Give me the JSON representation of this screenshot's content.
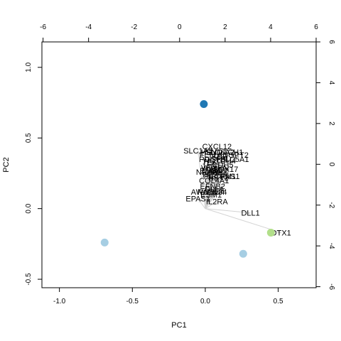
{
  "chart_data": {
    "type": "scatter",
    "subtype": "pca-biplot",
    "title": "",
    "xlabel": "PC1",
    "ylabel": "PC2",
    "xlim": [
      -1.12,
      0.76
    ],
    "ylim": [
      -0.56,
      1.18
    ],
    "x_ticks": [
      -1.0,
      -0.5,
      0.0,
      0.5
    ],
    "x_tick_labels": [
      "-1.0",
      "-0.5",
      "0.0",
      "0.5"
    ],
    "y_ticks": [
      -0.5,
      0.0,
      0.5,
      1.0
    ],
    "y_tick_labels": [
      "-0.5",
      "0.0",
      "0.5",
      "1.0"
    ],
    "top_axis": {
      "lim": [
        -6.05,
        6.0
      ],
      "ticks": [
        -6,
        -4,
        -2,
        0,
        2,
        4,
        6
      ],
      "tick_labels": [
        "-6",
        "-4",
        "-2",
        "0",
        "2",
        "4",
        "6"
      ]
    },
    "right_axis": {
      "lim": [
        -6.05,
        6.0
      ],
      "ticks": [
        -6,
        -4,
        -2,
        0,
        2,
        4,
        6
      ],
      "tick_labels": [
        "-6",
        "-4",
        "-2",
        "0",
        "2",
        "4",
        "6"
      ]
    },
    "grid": false,
    "legend": "none",
    "points": [
      {
        "x": -0.01,
        "y": 0.74,
        "color": "#1f78b4"
      },
      {
        "x": -0.69,
        "y": -0.24,
        "color": "#a6cee3"
      },
      {
        "x": 0.26,
        "y": -0.32,
        "color": "#a6cee3"
      },
      {
        "x": 0.45,
        "y": -0.17,
        "color": "#b2df8a"
      }
    ],
    "loading_label_side": "#7a7a7a",
    "loading_color": "#d3d3d3",
    "arrow_label": "#000000",
    "loadings": [
      {
        "label": "CXCL12",
        "x": 0.08,
        "y": 0.44,
        "arrow_end": [
          0.08,
          0.44
        ]
      },
      {
        "label": "SLC1A3",
        "x": -0.05,
        "y": 0.41,
        "arrow_end": [
          -0.05,
          0.41
        ]
      },
      {
        "label": "SLC6A2",
        "x": 0.1,
        "y": 0.4,
        "arrow_end": [
          0.1,
          0.4
        ]
      },
      {
        "label": "HEY1",
        "x": 0.04,
        "y": 0.4,
        "arrow_end": [
          0.04,
          0.4
        ]
      },
      {
        "label": "NOTCH1",
        "x": 0.15,
        "y": 0.4,
        "arrow_end": [
          0.15,
          0.4
        ]
      },
      {
        "label": "FLT1",
        "x": 0.02,
        "y": 0.38,
        "arrow_end": [
          0.02,
          0.38
        ]
      },
      {
        "label": "KDR",
        "x": 0.1,
        "y": 0.37,
        "arrow_end": [
          0.1,
          0.37
        ]
      },
      {
        "label": "ANGPT2",
        "x": 0.19,
        "y": 0.38,
        "arrow_end": [
          0.19,
          0.38
        ]
      },
      {
        "label": "SLC5A1",
        "x": 0.2,
        "y": 0.35,
        "arrow_end": [
          0.2,
          0.35
        ]
      },
      {
        "label": "PDGFB",
        "x": 0.05,
        "y": 0.35,
        "arrow_end": [
          0.05,
          0.35
        ]
      },
      {
        "label": "NOTCH4",
        "x": 0.1,
        "y": 0.34,
        "arrow_end": [
          0.1,
          0.34
        ]
      },
      {
        "label": "TEK",
        "x": 0.03,
        "y": 0.33,
        "arrow_end": [
          0.03,
          0.33
        ]
      },
      {
        "label": "JAG1",
        "x": 0.04,
        "y": 0.3,
        "arrow_end": [
          0.04,
          0.3
        ]
      },
      {
        "label": "VEGFA",
        "x": 0.06,
        "y": 0.29,
        "arrow_end": [
          0.06,
          0.29
        ]
      },
      {
        "label": "ENG",
        "x": 0.02,
        "y": 0.27,
        "arrow_end": [
          0.02,
          0.27
        ]
      },
      {
        "label": "CDH5",
        "x": 0.12,
        "y": 0.31,
        "arrow_end": [
          0.12,
          0.31
        ]
      },
      {
        "label": "SOX17",
        "x": 0.14,
        "y": 0.28,
        "arrow_end": [
          0.14,
          0.28
        ]
      },
      {
        "label": "MAML2",
        "x": 0.07,
        "y": 0.27,
        "arrow_end": [
          0.07,
          0.27
        ]
      },
      {
        "label": "NRARP",
        "x": 0.03,
        "y": 0.26,
        "arrow_end": [
          0.03,
          0.26
        ]
      },
      {
        "label": "TIE1",
        "x": 0.09,
        "y": 0.26,
        "arrow_end": [
          0.09,
          0.26
        ]
      },
      {
        "label": "HES1",
        "x": 0.05,
        "y": 0.24,
        "arrow_end": [
          0.05,
          0.24
        ]
      },
      {
        "label": "PECAM1",
        "x": 0.1,
        "y": 0.23,
        "arrow_end": [
          0.1,
          0.23
        ]
      },
      {
        "label": "COL4A1",
        "x": 0.06,
        "y": 0.2,
        "arrow_end": [
          0.06,
          0.2
        ]
      },
      {
        "label": "EFNB2",
        "x": 0.05,
        "y": 0.16,
        "arrow_end": [
          0.05,
          0.16
        ]
      },
      {
        "label": "PAS1",
        "x": 0.17,
        "y": 0.23,
        "arrow_end": [
          0.17,
          0.23
        ]
      },
      {
        "label": "HEY2",
        "x": 0.09,
        "y": 0.22,
        "arrow_end": [
          0.09,
          0.22
        ]
      },
      {
        "label": "DLL4",
        "x": 0.06,
        "y": 0.14,
        "arrow_end": [
          0.06,
          0.14
        ]
      },
      {
        "label": "ROBO4",
        "x": 0.04,
        "y": 0.12,
        "arrow_end": [
          0.04,
          0.12
        ]
      },
      {
        "label": "CD34",
        "x": 0.08,
        "y": 0.12,
        "arrow_end": [
          0.08,
          0.12
        ]
      },
      {
        "label": "AWAT1",
        "x": -0.01,
        "y": 0.12,
        "arrow_end": [
          -0.01,
          0.12
        ]
      },
      {
        "label": "ESM1",
        "x": 0.04,
        "y": 0.1,
        "arrow_end": [
          0.04,
          0.1
        ]
      },
      {
        "label": "EPAS1",
        "x": -0.05,
        "y": 0.07,
        "arrow_end": [
          -0.05,
          0.07
        ]
      },
      {
        "label": "IL2RA",
        "x": 0.08,
        "y": 0.05,
        "arrow_end": [
          0.08,
          0.05
        ]
      },
      {
        "label": "DLL1",
        "x": 0.31,
        "y": -0.03,
        "arrow_end": [
          0.31,
          -0.03
        ]
      },
      {
        "label": "DTX1",
        "x": 0.52,
        "y": -0.17,
        "arrow_end": [
          0.52,
          -0.17
        ]
      }
    ]
  }
}
